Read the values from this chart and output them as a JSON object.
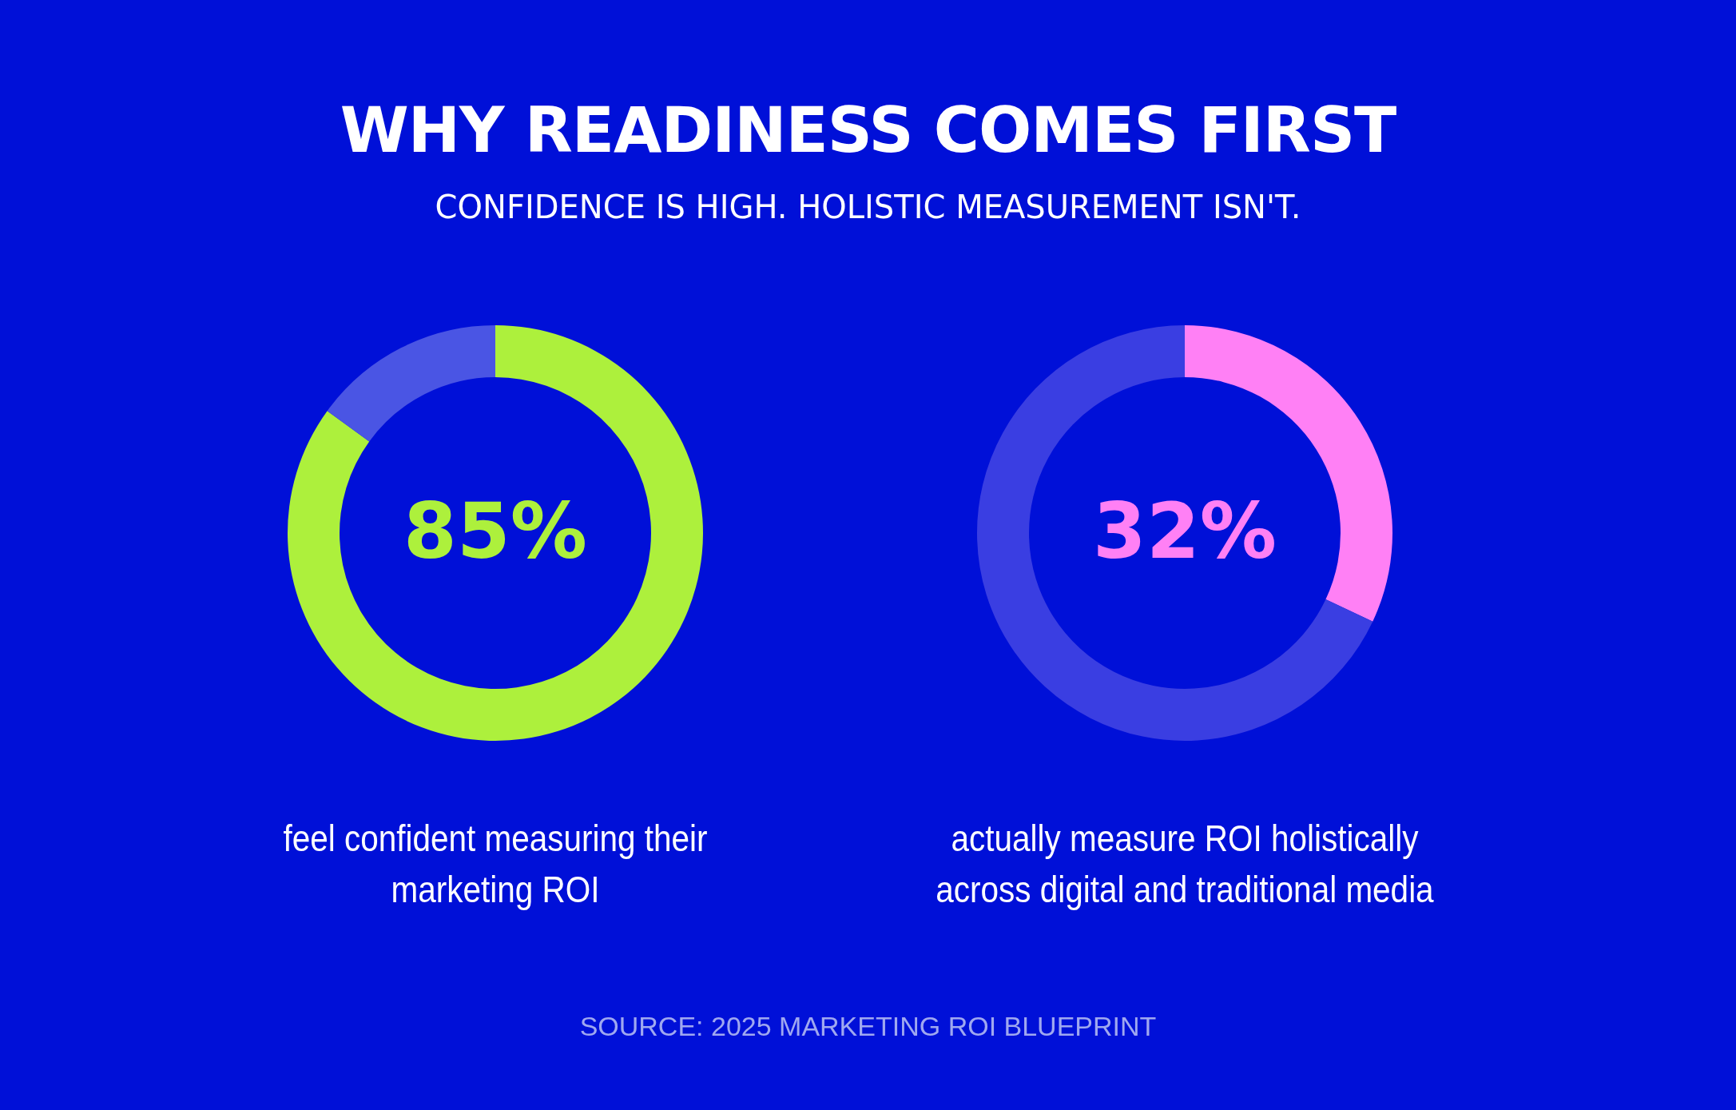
{
  "chart_data": [
    {
      "type": "donut",
      "title": "WHY READINESS COMES FIRST",
      "subtitle": "CONFIDENCE IS HIGH. HOLISTIC MEASUREMENT ISN'T.",
      "xlabel": "feel confident measuring their marketing ROI",
      "categories": [
        null,
        null
      ],
      "values": [
        85,
        15
      ],
      "colors": [
        "#adf03c",
        "#4a55e4"
      ],
      "value_labels": [
        "85%",
        null
      ]
    },
    {
      "type": "donut",
      "xlabel": "actually measure ROI holistically across digital and traditional media",
      "categories": [
        null,
        null
      ],
      "values": [
        32,
        68
      ],
      "colors": [
        "#ff80f5",
        "#3a3ee2"
      ],
      "value_labels": [
        "32%",
        null
      ],
      "annotations": [
        "SOURCE: 2025 MARKETING ROI BLUEPRINT"
      ]
    }
  ]
}
